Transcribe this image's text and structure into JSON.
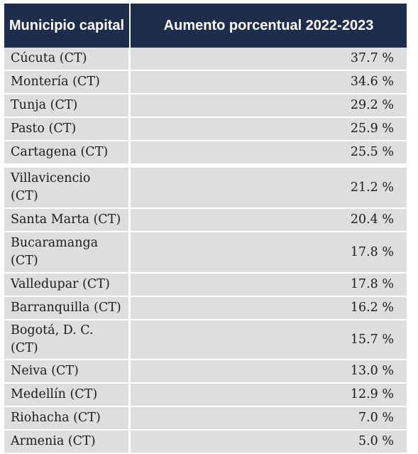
{
  "table": {
    "headers": [
      "Municipio capital",
      "Aumento porcentual 2022-2023"
    ],
    "rows": [
      {
        "municipio": "Cúcuta (CT)",
        "aumento": "37.7 %"
      },
      {
        "municipio": "Montería (CT)",
        "aumento": "34.6 %"
      },
      {
        "municipio": "Tunja (CT)",
        "aumento": "29.2 %"
      },
      {
        "municipio": "Pasto (CT)",
        "aumento": "25.9 %"
      },
      {
        "municipio": "Cartagena (CT)",
        "aumento": "25.5 %"
      },
      {
        "municipio": "Villavicencio (CT)",
        "aumento": "21.2 %"
      },
      {
        "municipio": "Santa Marta (CT)",
        "aumento": "20.4 %"
      },
      {
        "municipio": "Bucaramanga (CT)",
        "aumento": "17.8 %"
      },
      {
        "municipio": "Valledupar (CT)",
        "aumento": "17.8 %"
      },
      {
        "municipio": "Barranquilla (CT)",
        "aumento": "16.2 %"
      },
      {
        "municipio": "Bogotá, D. C. (CT)",
        "aumento": "15.7 %"
      },
      {
        "municipio": "Neiva (CT)",
        "aumento": "13.0 %"
      },
      {
        "municipio": "Medellín (CT)",
        "aumento": "12.9 %"
      },
      {
        "municipio": "Riohacha (CT)",
        "aumento": "7.0 %"
      },
      {
        "municipio": "Armenia (CT)",
        "aumento": "5.0 %"
      }
    ]
  },
  "colors": {
    "header_bg": "#1f2d4d",
    "header_text": "#ffffff",
    "row_bg": "#dedede",
    "row_text": "#1c1c1c"
  }
}
